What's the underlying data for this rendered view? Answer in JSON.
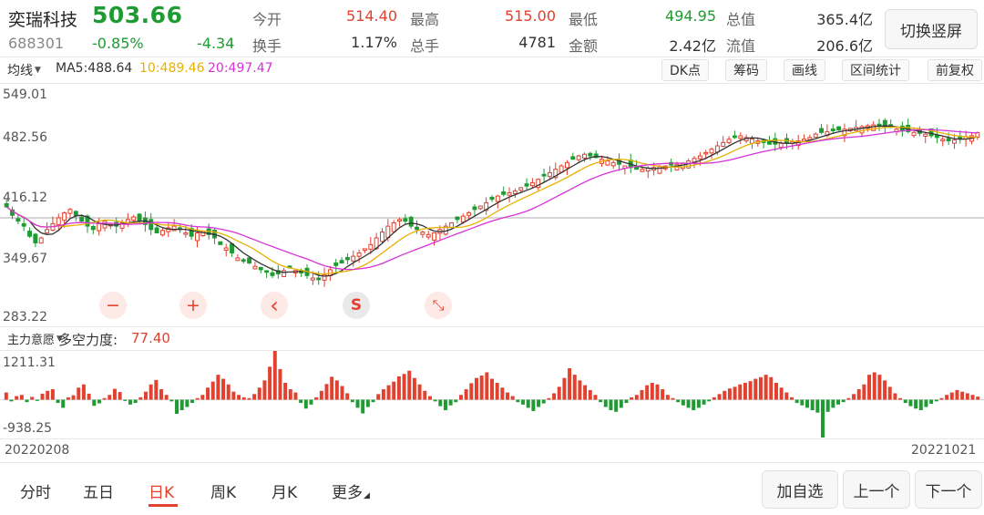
{
  "header": {
    "stock_name": "奕瑞科技",
    "price": "503.66",
    "code": "688301",
    "change_pct": "-0.85%",
    "change_amt": "-4.34",
    "quotes": [
      {
        "label": "今开",
        "value": "514.40",
        "color": "#e1412e"
      },
      {
        "label": "最高",
        "value": "515.00",
        "color": "#e1412e"
      },
      {
        "label": "最低",
        "value": "494.95",
        "color": "#1e9b32"
      },
      {
        "label": "总值",
        "value": "365.4亿",
        "color": "#333333"
      },
      {
        "label": "换手",
        "value": "1.17%",
        "color": "#333333"
      },
      {
        "label": "总手",
        "value": "4781",
        "color": "#333333"
      },
      {
        "label": "金额",
        "value": "2.42亿",
        "color": "#333333"
      },
      {
        "label": "流值",
        "value": "206.6亿",
        "color": "#333333"
      }
    ],
    "switch_button": "切换竖屏"
  },
  "toolbar": {
    "ma_selector": "均线",
    "ma5": "MA5:488.64",
    "ma10": "10:489.46",
    "ma20": "20:497.47",
    "buttons": [
      "DK点",
      "筹码",
      "画线",
      "区间统计",
      "前复权"
    ]
  },
  "chart_controls": {
    "zoom_out": "−",
    "zoom_in": "+",
    "prev": "‹",
    "s_label": "S",
    "fullscreen": "⤡"
  },
  "indicator": {
    "selector": "主力意愿",
    "name": "多空力度:",
    "value": "77.40",
    "ymax_label": "1211.31",
    "ymin_label": "-938.25"
  },
  "chart_data": {
    "type": "candlestick",
    "y_tick_labels": [
      "549.01",
      "482.56",
      "416.12",
      "349.67",
      "283.22"
    ],
    "ylim": [
      283.22,
      549.01
    ],
    "x_start_label": "20220208",
    "x_end_label": "20221021",
    "ma_legend": {
      "MA5": 488.64,
      "MA10": 489.46,
      "MA20": 497.47
    },
    "reference_line": 402,
    "close_path": [
      415,
      405,
      398,
      392,
      380,
      372,
      378,
      388,
      395,
      402,
      408,
      412,
      405,
      398,
      392,
      388,
      395,
      398,
      394,
      392,
      396,
      400,
      403,
      398,
      394,
      388,
      384,
      387,
      390,
      392,
      388,
      384,
      380,
      384,
      386,
      382,
      378,
      370,
      366,
      360,
      354,
      350,
      348,
      344,
      340,
      337,
      333,
      335,
      339,
      342,
      339,
      336,
      333,
      330,
      328,
      334,
      340,
      345,
      348,
      352,
      356,
      360,
      365,
      370,
      378,
      385,
      392,
      396,
      400,
      398,
      392,
      388,
      385,
      382,
      384,
      388,
      392,
      396,
      400,
      404,
      408,
      412,
      416,
      420,
      424,
      428,
      430,
      432,
      434,
      438,
      440,
      444,
      448,
      452,
      456,
      460,
      464,
      468,
      472,
      476,
      478,
      476,
      474,
      472,
      470,
      468,
      466,
      464,
      462,
      460,
      460,
      461,
      462,
      463,
      464,
      465,
      466,
      467,
      470,
      473,
      476,
      480,
      484,
      488,
      492,
      496,
      498,
      500,
      498,
      496,
      494,
      492,
      490,
      490,
      491,
      492,
      493,
      494,
      496,
      498,
      502,
      504,
      505,
      506,
      507,
      508,
      509,
      510,
      511,
      512,
      513,
      512,
      511,
      510,
      508,
      506,
      505,
      504,
      503,
      502,
      500,
      498,
      496,
      494,
      495,
      497,
      499,
      500,
      503.66
    ],
    "indicator_values": [
      180,
      -40,
      90,
      120,
      -60,
      70,
      -30,
      150,
      220,
      260,
      -80,
      -200,
      60,
      110,
      300,
      380,
      150,
      -150,
      -90,
      40,
      120,
      270,
      190,
      -30,
      -120,
      -80,
      60,
      200,
      380,
      490,
      260,
      120,
      -40,
      -350,
      -260,
      -180,
      -80,
      40,
      120,
      300,
      450,
      620,
      520,
      380,
      200,
      120,
      60,
      40,
      140,
      300,
      480,
      820,
      1211.31,
      760,
      420,
      260,
      180,
      -80,
      -220,
      -120,
      60,
      220,
      390,
      570,
      480,
      340,
      160,
      -60,
      -200,
      -340,
      -180,
      -60,
      140,
      260,
      360,
      450,
      580,
      640,
      720,
      540,
      380,
      220,
      90,
      -40,
      -160,
      -260,
      -140,
      -60,
      120,
      260,
      410,
      540,
      600,
      680,
      520,
      420,
      300,
      180,
      90,
      -60,
      -120,
      -200,
      -280,
      -180,
      -90,
      40,
      160,
      320,
      540,
      780,
      620,
      480,
      360,
      240,
      120,
      -60,
      -180,
      -260,
      -300,
      -200,
      -80,
      60,
      120,
      240,
      360,
      420,
      380,
      260,
      120,
      40,
      -60,
      -140,
      -200,
      -260,
      -200,
      -120,
      -40,
      60,
      140,
      220,
      280,
      320,
      380,
      420,
      460,
      520,
      560,
      620,
      560,
      420,
      300,
      180,
      60,
      -80,
      -140,
      -200,
      -260,
      -320,
      -938.25,
      -300,
      -200,
      -120,
      -60,
      40,
      140,
      260,
      380,
      620,
      680,
      620,
      480,
      320,
      160,
      40,
      -80,
      -160,
      -220,
      -260,
      -180,
      -100,
      -40,
      40,
      120,
      180,
      240,
      200,
      160,
      120,
      77.4
    ]
  },
  "bottom_tabs": [
    "分时",
    "五日",
    "日K",
    "周K",
    "月K",
    "更多"
  ],
  "bottom_buttons": [
    "加自选",
    "上一个",
    "下一个"
  ],
  "colors": {
    "up": "#e1412e",
    "down": "#1e9b32",
    "ma5": "#333333",
    "ma10": "#e8b100",
    "ma20": "#d633d6"
  }
}
